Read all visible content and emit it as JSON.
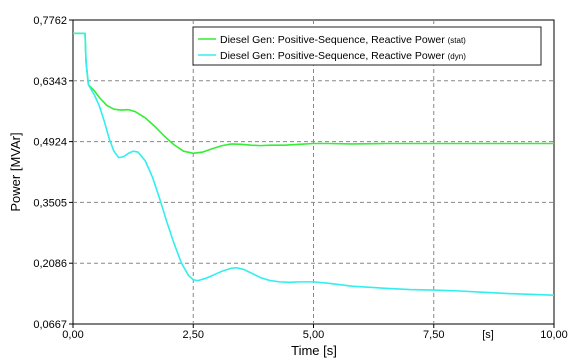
{
  "chart_data": {
    "type": "line",
    "xlabel": "Time [s]",
    "ylabel": "Power [MVAr]",
    "x_unit_label": "[s]",
    "xlim": [
      0,
      10
    ],
    "ylim": [
      0.0667,
      0.7762
    ],
    "x_ticks": [
      0,
      2.5,
      5,
      7.5,
      10
    ],
    "x_tick_labels": [
      "0,00",
      "2,50",
      "5,00",
      "7,50",
      "10,00"
    ],
    "y_ticks": [
      0.0667,
      0.2086,
      0.3505,
      0.4924,
      0.6343,
      0.7762
    ],
    "y_tick_labels": [
      "0,0667",
      "0,2086",
      "0,3505",
      "0,4924",
      "0,6343",
      "0,7762"
    ],
    "grid": true,
    "legend_position": "top-right",
    "series": [
      {
        "name": "Diesel Gen: Positive-Sequence, Reactive Power",
        "name_suffix": "(stat)",
        "color": "#33ee33",
        "points": [
          [
            -0.05,
            0.745
          ],
          [
            0.25,
            0.745
          ],
          [
            0.27,
            0.68
          ],
          [
            0.32,
            0.625
          ],
          [
            0.45,
            0.61
          ],
          [
            0.55,
            0.595
          ],
          [
            0.7,
            0.577
          ],
          [
            0.85,
            0.568
          ],
          [
            1.0,
            0.566
          ],
          [
            1.15,
            0.567
          ],
          [
            1.3,
            0.562
          ],
          [
            1.5,
            0.548
          ],
          [
            1.7,
            0.528
          ],
          [
            1.9,
            0.505
          ],
          [
            2.1,
            0.485
          ],
          [
            2.3,
            0.47
          ],
          [
            2.5,
            0.465
          ],
          [
            2.7,
            0.468
          ],
          [
            2.9,
            0.476
          ],
          [
            3.1,
            0.483
          ],
          [
            3.3,
            0.487
          ],
          [
            3.5,
            0.486
          ],
          [
            3.7,
            0.484
          ],
          [
            3.9,
            0.483
          ],
          [
            4.1,
            0.484
          ],
          [
            4.4,
            0.484
          ],
          [
            4.7,
            0.486
          ],
          [
            5.0,
            0.488
          ],
          [
            5.3,
            0.488
          ],
          [
            5.8,
            0.487
          ],
          [
            6.5,
            0.488
          ],
          [
            7.5,
            0.488
          ],
          [
            8.5,
            0.488
          ],
          [
            10.0,
            0.488
          ]
        ]
      },
      {
        "name": "Diesel Gen: Positive-Sequence, Reactive Power",
        "name_suffix": "(dyn)",
        "color": "#33eeee",
        "points": [
          [
            -0.05,
            0.745
          ],
          [
            0.25,
            0.745
          ],
          [
            0.27,
            0.68
          ],
          [
            0.32,
            0.625
          ],
          [
            0.45,
            0.6
          ],
          [
            0.55,
            0.575
          ],
          [
            0.65,
            0.54
          ],
          [
            0.75,
            0.5
          ],
          [
            0.85,
            0.47
          ],
          [
            0.95,
            0.455
          ],
          [
            1.05,
            0.457
          ],
          [
            1.15,
            0.465
          ],
          [
            1.25,
            0.47
          ],
          [
            1.35,
            0.468
          ],
          [
            1.5,
            0.448
          ],
          [
            1.65,
            0.41
          ],
          [
            1.8,
            0.36
          ],
          [
            1.95,
            0.305
          ],
          [
            2.1,
            0.255
          ],
          [
            2.25,
            0.21
          ],
          [
            2.4,
            0.18
          ],
          [
            2.5,
            0.17
          ],
          [
            2.6,
            0.168
          ],
          [
            2.75,
            0.173
          ],
          [
            2.9,
            0.18
          ],
          [
            3.1,
            0.19
          ],
          [
            3.3,
            0.197
          ],
          [
            3.4,
            0.198
          ],
          [
            3.55,
            0.194
          ],
          [
            3.7,
            0.186
          ],
          [
            3.9,
            0.175
          ],
          [
            4.1,
            0.168
          ],
          [
            4.3,
            0.165
          ],
          [
            4.5,
            0.164
          ],
          [
            4.7,
            0.165
          ],
          [
            5.0,
            0.165
          ],
          [
            5.3,
            0.162
          ],
          [
            5.8,
            0.155
          ],
          [
            6.5,
            0.15
          ],
          [
            7.0,
            0.147
          ],
          [
            7.5,
            0.146
          ],
          [
            8.0,
            0.144
          ],
          [
            8.5,
            0.141
          ],
          [
            9.0,
            0.138
          ],
          [
            9.5,
            0.136
          ],
          [
            10.0,
            0.134
          ]
        ]
      }
    ]
  }
}
